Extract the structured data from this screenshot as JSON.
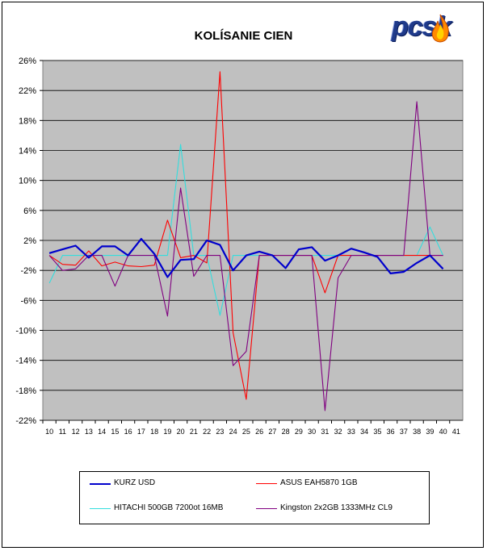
{
  "chart_data": {
    "type": "line",
    "title": "KOLÍSANIE CIEN",
    "xlabel": "",
    "ylabel": "",
    "x": [
      10,
      11,
      12,
      13,
      14,
      15,
      16,
      17,
      18,
      19,
      20,
      21,
      22,
      23,
      24,
      25,
      26,
      27,
      28,
      29,
      30,
      31,
      32,
      33,
      34,
      35,
      36,
      37,
      38,
      39,
      40
    ],
    "x_ticks": [
      "10",
      "11",
      "12",
      "13",
      "14",
      "15",
      "16",
      "17",
      "18",
      "19",
      "20",
      "21",
      "22",
      "23",
      "24",
      "25",
      "26",
      "27",
      "28",
      "29",
      "30",
      "31",
      "32",
      "33",
      "34",
      "35",
      "36",
      "37",
      "38",
      "39",
      "40",
      "41"
    ],
    "ylim": [
      -0.22,
      0.26
    ],
    "y_ticks": [
      "26%",
      "22%",
      "18%",
      "14%",
      "10%",
      "6%",
      "2%",
      "-2%",
      "-6%",
      "-10%",
      "-14%",
      "-18%",
      "-22%"
    ],
    "y_tick_values": [
      0.26,
      0.22,
      0.18,
      0.14,
      0.1,
      0.06,
      0.02,
      -0.02,
      -0.06,
      -0.1,
      -0.14,
      -0.18,
      -0.22
    ],
    "grid": "horizontal",
    "legend_position": "bottom",
    "series": [
      {
        "name": "KURZ USD",
        "color": "#0000cc",
        "values": [
          0.003,
          0.008,
          0.013,
          -0.003,
          0.012,
          0.012,
          0.0,
          0.022,
          0.002,
          -0.029,
          -0.006,
          -0.005,
          0.02,
          0.014,
          -0.02,
          0.0,
          0.005,
          0.0,
          -0.017,
          0.008,
          0.011,
          -0.007,
          0.0,
          0.009,
          0.004,
          -0.002,
          -0.024,
          -0.022,
          -0.01,
          0.0,
          -0.018
        ]
      },
      {
        "name": "ASUS EAH5870 1GB",
        "color": "#ff0000",
        "values": [
          0.0,
          -0.012,
          -0.013,
          0.006,
          -0.014,
          -0.009,
          -0.014,
          -0.015,
          -0.013,
          0.047,
          -0.003,
          0.0,
          -0.01,
          0.245,
          -0.103,
          -0.192,
          0.0,
          0.0,
          0.0,
          0.0,
          0.0,
          -0.05,
          0.0,
          0.0,
          0.0,
          0.0,
          0.0,
          0.0,
          0.0,
          0.0,
          0.0
        ]
      },
      {
        "name": "HITACHI 500GB 7200ot 16MB",
        "color": "#33dddd",
        "values": [
          -0.037,
          0.0,
          0.0,
          0.0,
          0.0,
          0.0,
          0.0,
          0.0,
          0.0,
          0.0,
          0.148,
          0.0,
          0.0,
          -0.08,
          0.0,
          0.0,
          0.0,
          0.0,
          0.0,
          0.0,
          0.0,
          0.0,
          0.0,
          0.0,
          0.0,
          0.0,
          0.0,
          0.0,
          0.0,
          0.038,
          0.0
        ]
      },
      {
        "name": "Kingston 2x2GB 1333MHz CL9",
        "color": "#800080",
        "values": [
          0.0,
          -0.02,
          -0.018,
          0.0,
          0.0,
          -0.041,
          0.0,
          0.0,
          0.0,
          -0.081,
          0.09,
          -0.028,
          0.0,
          0.0,
          -0.147,
          -0.128,
          0.0,
          0.0,
          0.0,
          0.0,
          0.0,
          -0.207,
          -0.03,
          0.0,
          0.0,
          0.0,
          0.0,
          0.0,
          0.205,
          0.0,
          0.0
        ]
      }
    ]
  },
  "logo": {
    "text": "pcsk"
  }
}
